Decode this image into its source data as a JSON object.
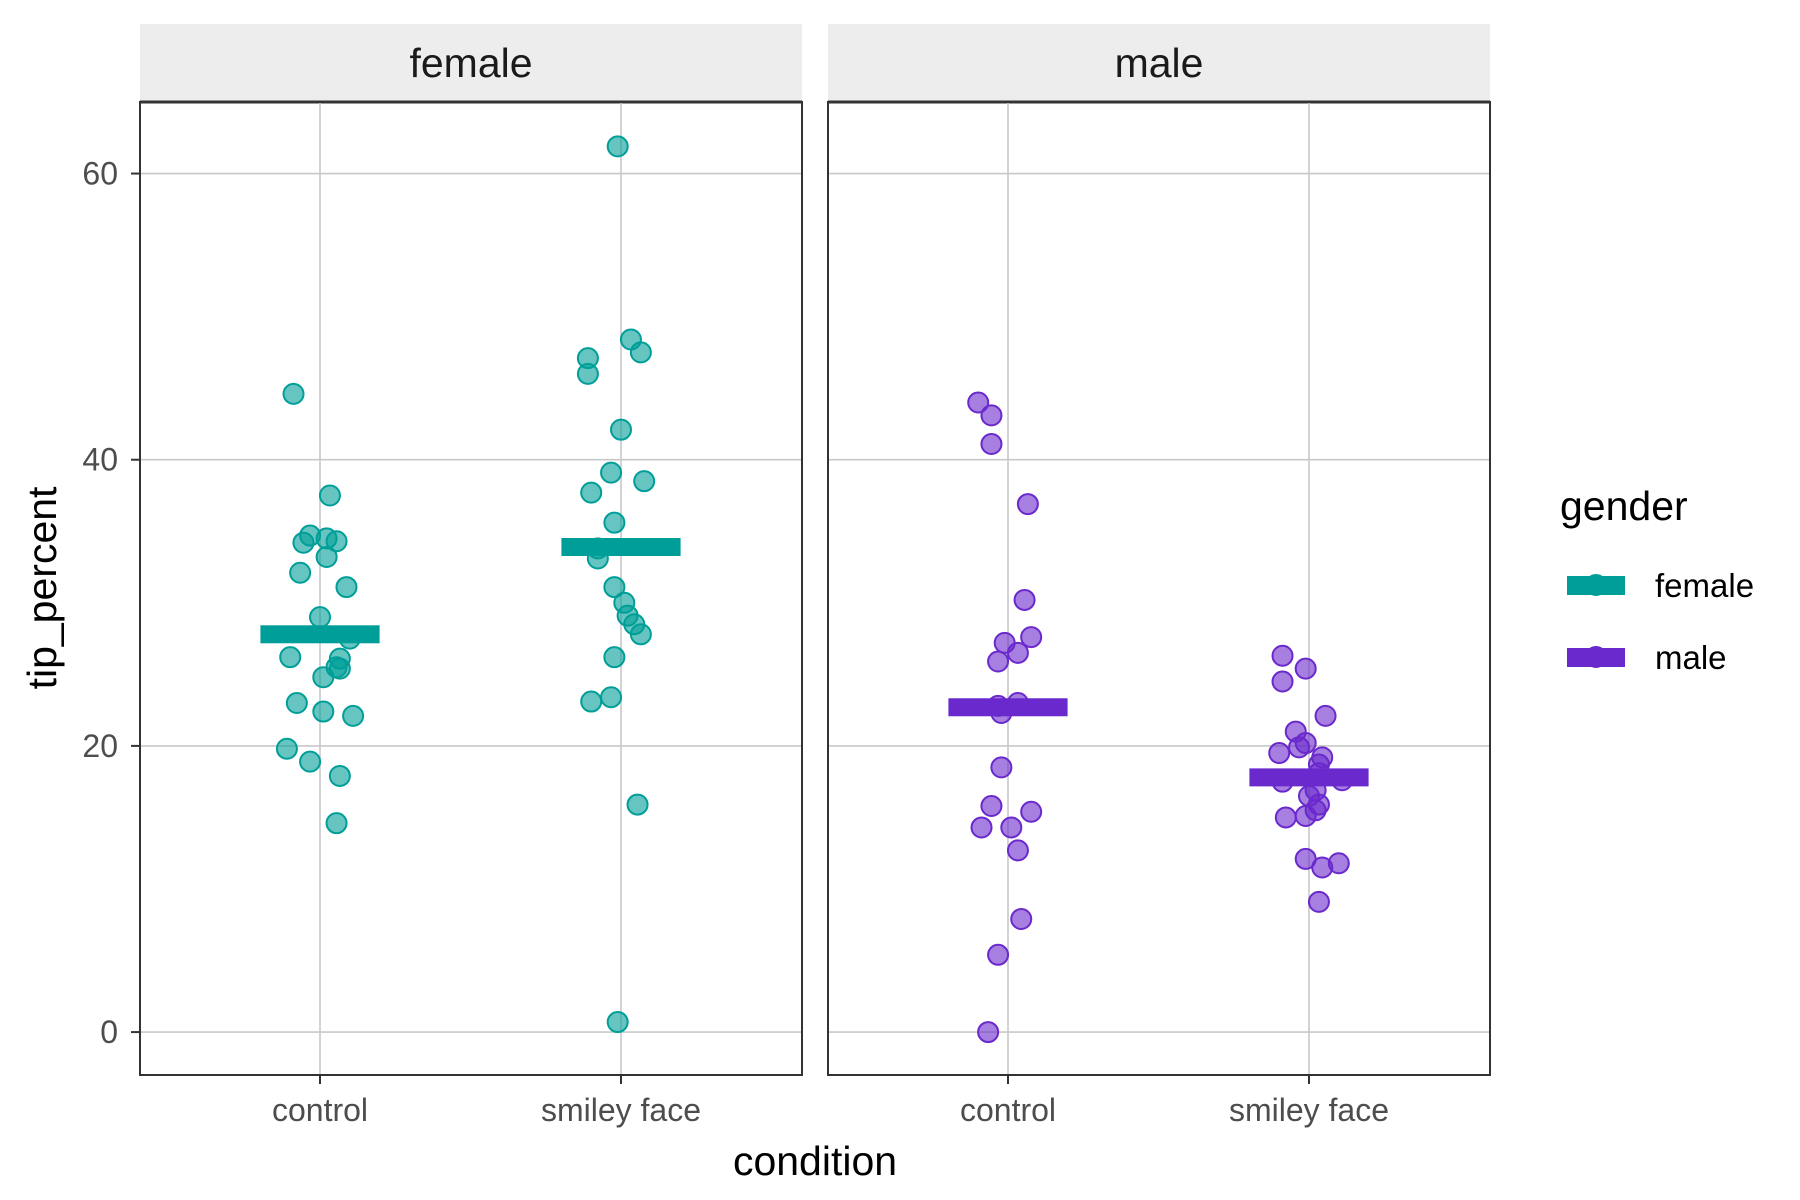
{
  "chart_data": {
    "type": "scatter",
    "subtype": "faceted jitter strip plot with mean bars",
    "facet_variable": "gender",
    "xlabel": "condition",
    "ylabel": "tip_percent",
    "categories": [
      "control",
      "smiley face"
    ],
    "ylim": [
      -3,
      65
    ],
    "yticks": [
      0,
      20,
      40,
      60
    ],
    "grid": true,
    "legend": {
      "title": "gender",
      "position": "right",
      "entries": [
        {
          "label": "female",
          "color": "#009E98"
        },
        {
          "label": "male",
          "color": "#6A29CC"
        }
      ]
    },
    "panels": [
      {
        "label": "female",
        "color": "#009E98",
        "groups": [
          {
            "category": "control",
            "mean": 27.8,
            "points": [
              {
                "jitter": -0.08,
                "y": 44.6
              },
              {
                "jitter": 0.03,
                "y": 37.5
              },
              {
                "jitter": -0.03,
                "y": 34.7
              },
              {
                "jitter": 0.02,
                "y": 34.5
              },
              {
                "jitter": -0.05,
                "y": 34.2
              },
              {
                "jitter": 0.05,
                "y": 34.3
              },
              {
                "jitter": 0.02,
                "y": 33.2
              },
              {
                "jitter": -0.06,
                "y": 32.1
              },
              {
                "jitter": 0.08,
                "y": 31.1
              },
              {
                "jitter": 0.0,
                "y": 29.0
              },
              {
                "jitter": 0.09,
                "y": 27.5
              },
              {
                "jitter": -0.09,
                "y": 26.2
              },
              {
                "jitter": 0.06,
                "y": 26.1
              },
              {
                "jitter": 0.06,
                "y": 25.4
              },
              {
                "jitter": 0.05,
                "y": 25.5
              },
              {
                "jitter": 0.01,
                "y": 24.8
              },
              {
                "jitter": -0.07,
                "y": 23.0
              },
              {
                "jitter": 0.01,
                "y": 22.4
              },
              {
                "jitter": 0.1,
                "y": 22.1
              },
              {
                "jitter": -0.1,
                "y": 19.8
              },
              {
                "jitter": -0.03,
                "y": 18.9
              },
              {
                "jitter": 0.06,
                "y": 17.9
              },
              {
                "jitter": 0.05,
                "y": 14.6
              }
            ]
          },
          {
            "category": "smiley face",
            "mean": 33.9,
            "points": [
              {
                "jitter": -0.01,
                "y": 61.9
              },
              {
                "jitter": 0.03,
                "y": 48.4
              },
              {
                "jitter": -0.1,
                "y": 47.1
              },
              {
                "jitter": 0.06,
                "y": 47.5
              },
              {
                "jitter": -0.1,
                "y": 46.0
              },
              {
                "jitter": 0.0,
                "y": 42.1
              },
              {
                "jitter": -0.03,
                "y": 39.1
              },
              {
                "jitter": 0.07,
                "y": 38.5
              },
              {
                "jitter": -0.09,
                "y": 37.7
              },
              {
                "jitter": -0.02,
                "y": 35.6
              },
              {
                "jitter": -0.07,
                "y": 33.8
              },
              {
                "jitter": -0.07,
                "y": 33.1
              },
              {
                "jitter": -0.02,
                "y": 31.1
              },
              {
                "jitter": 0.01,
                "y": 30.0
              },
              {
                "jitter": 0.02,
                "y": 29.1
              },
              {
                "jitter": 0.04,
                "y": 28.5
              },
              {
                "jitter": 0.06,
                "y": 27.8
              },
              {
                "jitter": -0.02,
                "y": 26.2
              },
              {
                "jitter": -0.09,
                "y": 23.1
              },
              {
                "jitter": -0.03,
                "y": 23.4
              },
              {
                "jitter": 0.05,
                "y": 15.9
              },
              {
                "jitter": -0.01,
                "y": 0.7
              }
            ]
          }
        ]
      },
      {
        "label": "male",
        "color": "#6A29CC",
        "groups": [
          {
            "category": "control",
            "mean": 22.7,
            "points": [
              {
                "jitter": -0.09,
                "y": 44.0
              },
              {
                "jitter": -0.05,
                "y": 43.1
              },
              {
                "jitter": -0.05,
                "y": 41.1
              },
              {
                "jitter": 0.06,
                "y": 36.9
              },
              {
                "jitter": 0.05,
                "y": 30.2
              },
              {
                "jitter": 0.07,
                "y": 27.6
              },
              {
                "jitter": -0.01,
                "y": 27.2
              },
              {
                "jitter": 0.03,
                "y": 26.5
              },
              {
                "jitter": -0.03,
                "y": 25.9
              },
              {
                "jitter": 0.03,
                "y": 23.0
              },
              {
                "jitter": -0.03,
                "y": 22.8
              },
              {
                "jitter": -0.02,
                "y": 22.3
              },
              {
                "jitter": -0.02,
                "y": 18.5
              },
              {
                "jitter": -0.05,
                "y": 15.8
              },
              {
                "jitter": 0.07,
                "y": 15.4
              },
              {
                "jitter": -0.08,
                "y": 14.3
              },
              {
                "jitter": 0.01,
                "y": 14.3
              },
              {
                "jitter": 0.03,
                "y": 12.7
              },
              {
                "jitter": 0.04,
                "y": 7.9
              },
              {
                "jitter": -0.03,
                "y": 5.4
              },
              {
                "jitter": -0.06,
                "y": 0.0
              }
            ]
          },
          {
            "category": "smiley face",
            "mean": 17.8,
            "points": [
              {
                "jitter": -0.08,
                "y": 26.3
              },
              {
                "jitter": -0.01,
                "y": 25.4
              },
              {
                "jitter": -0.08,
                "y": 24.5
              },
              {
                "jitter": 0.05,
                "y": 22.1
              },
              {
                "jitter": -0.04,
                "y": 21.0
              },
              {
                "jitter": -0.01,
                "y": 20.2
              },
              {
                "jitter": -0.03,
                "y": 19.9
              },
              {
                "jitter": -0.09,
                "y": 19.5
              },
              {
                "jitter": 0.04,
                "y": 19.2
              },
              {
                "jitter": 0.03,
                "y": 18.7
              },
              {
                "jitter": 0.03,
                "y": 18.1
              },
              {
                "jitter": -0.08,
                "y": 17.5
              },
              {
                "jitter": 0.1,
                "y": 17.6
              },
              {
                "jitter": 0.02,
                "y": 16.9
              },
              {
                "jitter": 0.0,
                "y": 16.5
              },
              {
                "jitter": 0.03,
                "y": 15.9
              },
              {
                "jitter": 0.02,
                "y": 15.5
              },
              {
                "jitter": -0.01,
                "y": 15.1
              },
              {
                "jitter": -0.07,
                "y": 15.0
              },
              {
                "jitter": -0.01,
                "y": 12.1
              },
              {
                "jitter": 0.04,
                "y": 11.5
              },
              {
                "jitter": 0.09,
                "y": 11.8
              },
              {
                "jitter": 0.03,
                "y": 9.1
              }
            ]
          }
        ]
      }
    ]
  }
}
